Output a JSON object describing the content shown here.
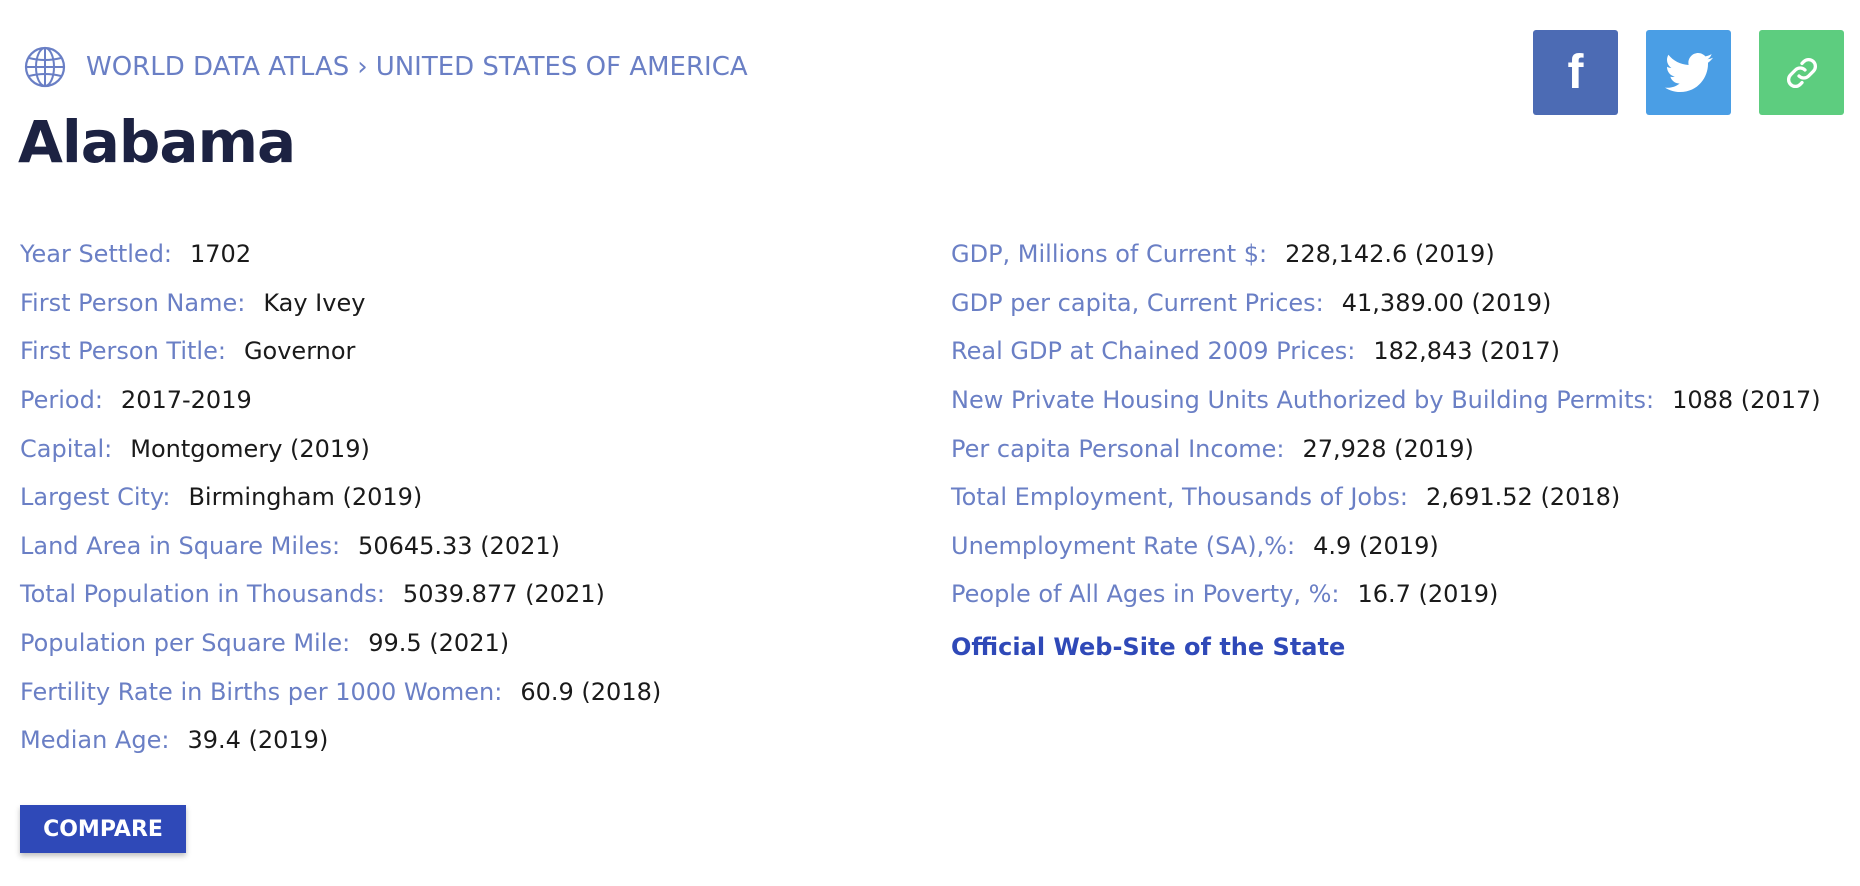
{
  "breadcrumb": {
    "root": "WORLD DATA ATLAS",
    "separator": "›",
    "country": "UNITED STATES OF AMERICA"
  },
  "page_title": "Alabama",
  "share": {
    "facebook_icon": "facebook-icon",
    "twitter_icon": "twitter-icon",
    "link_icon": "link-icon",
    "colors": {
      "facebook": "#4c6bb4",
      "twitter": "#4a9ee5",
      "link": "#5dcd7f"
    }
  },
  "left_stats": [
    {
      "label": "Year Settled:",
      "value": "1702"
    },
    {
      "label": "First Person Name:",
      "value": "Kay Ivey"
    },
    {
      "label": "First Person Title:",
      "value": "Governor"
    },
    {
      "label": "Period:",
      "value": "2017-2019"
    },
    {
      "label": "Capital:",
      "value": "Montgomery (2019)"
    },
    {
      "label": "Largest City:",
      "value": "Birmingham (2019)"
    },
    {
      "label": "Land Area in Square Miles:",
      "value": "50645.33 (2021)"
    },
    {
      "label": "Total Population in Thousands:",
      "value": "5039.877 (2021)"
    },
    {
      "label": "Population per Square Mile:",
      "value": "99.5 (2021)"
    },
    {
      "label": "Fertility Rate in Births per 1000 Women:",
      "value": "60.9 (2018)"
    },
    {
      "label": "Median Age:",
      "value": "39.4 (2019)"
    }
  ],
  "right_stats": [
    {
      "label": "GDP, Millions of Current $:",
      "value": "228,142.6 (2019)"
    },
    {
      "label": "GDP per capita, Current Prices:",
      "value": "41,389.00 (2019)"
    },
    {
      "label": "Real GDP at Chained 2009 Prices:",
      "value": "182,843 (2017)"
    },
    {
      "label": "New Private Housing Units Authorized by Building Permits:",
      "value": "1088 (2017)"
    },
    {
      "label": "Per capita Personal Income:",
      "value": "27,928 (2019)"
    },
    {
      "label": "Total Employment, Thousands of Jobs:",
      "value": "2,691.52 (2018)"
    },
    {
      "label": "Unemployment Rate (SA),%:",
      "value": "4.9 (2019)"
    },
    {
      "label": "People of All Ages in Poverty, %:",
      "value": "16.7 (2019)"
    }
  ],
  "official_link": "Official Web-Site of the State",
  "compare_button": "COMPARE",
  "colors": {
    "label": "#6a7fc5",
    "accent": "#2f49b8",
    "title": "#1c2242"
  }
}
